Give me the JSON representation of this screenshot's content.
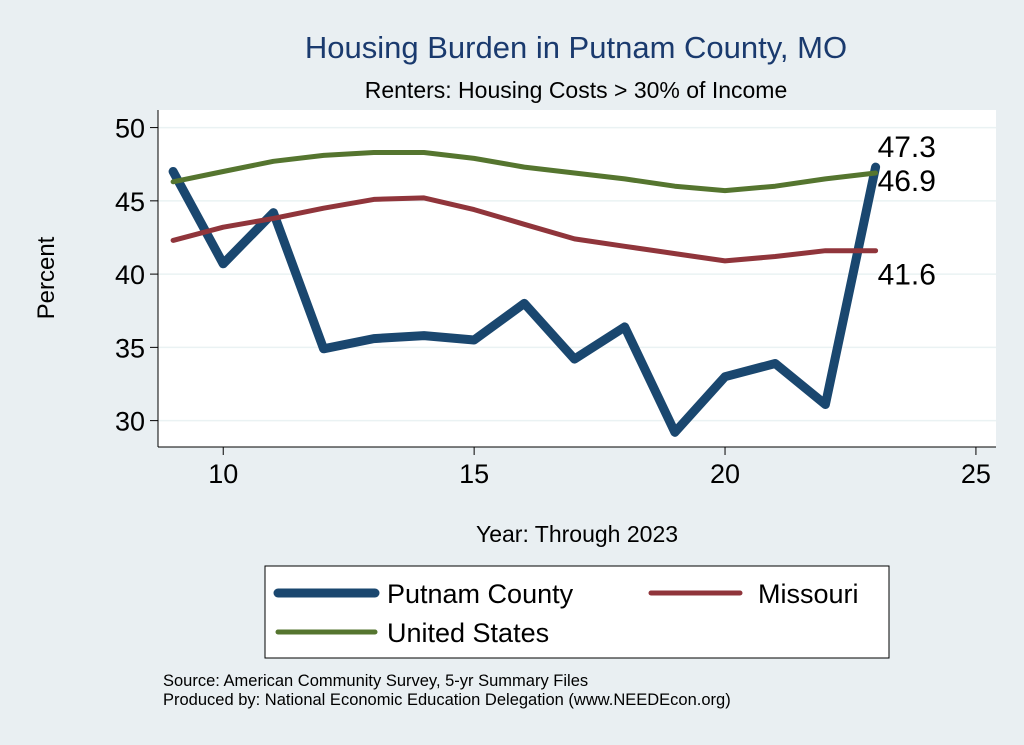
{
  "chart_data": {
    "type": "line",
    "title": "Housing Burden in Putnam County, MO",
    "subtitle": "Renters: Housing Costs > 30% of Income",
    "xlabel": "Year: Through 2023",
    "ylabel": "Percent",
    "xlim": [
      8.7,
      25.4
    ],
    "ylim": [
      28.2,
      51.2
    ],
    "xticks": [
      10,
      15,
      20,
      25
    ],
    "yticks": [
      30,
      35,
      40,
      45,
      50
    ],
    "grid": true,
    "series": [
      {
        "name": "Putnam County",
        "color": "#1a476f",
        "x": [
          9,
          10,
          11,
          12,
          13,
          14,
          15,
          16,
          17,
          18,
          19,
          20,
          21,
          22,
          23
        ],
        "values": [
          47.0,
          40.7,
          44.2,
          34.9,
          35.6,
          35.8,
          35.5,
          38.0,
          34.2,
          36.4,
          29.2,
          33.0,
          33.9,
          31.1,
          47.3
        ],
        "end_label": "47.3"
      },
      {
        "name": "Missouri",
        "color": "#90353b",
        "x": [
          9,
          10,
          11,
          12,
          13,
          14,
          15,
          16,
          17,
          18,
          19,
          20,
          21,
          22,
          23
        ],
        "values": [
          42.3,
          43.2,
          43.8,
          44.5,
          45.1,
          45.2,
          44.4,
          43.4,
          42.4,
          41.9,
          41.4,
          40.9,
          41.2,
          41.6,
          41.6
        ],
        "end_label": "41.6"
      },
      {
        "name": "United States",
        "color": "#55752f",
        "x": [
          9,
          10,
          11,
          12,
          13,
          14,
          15,
          16,
          17,
          18,
          19,
          20,
          21,
          22,
          23
        ],
        "values": [
          46.3,
          47.0,
          47.7,
          48.1,
          48.3,
          48.3,
          47.9,
          47.3,
          46.9,
          46.5,
          46.0,
          45.7,
          46.0,
          46.5,
          46.9
        ],
        "end_label": "46.9"
      }
    ],
    "legend": {
      "position": "bottom",
      "entries": [
        "Putnam County",
        "Missouri",
        "United States"
      ]
    }
  },
  "footer": {
    "source": "Source: American Community Survey, 5-yr Summary Files",
    "produced_by": "Produced by: National Economic Education Delegation (www.NEEDEcon.org)"
  }
}
